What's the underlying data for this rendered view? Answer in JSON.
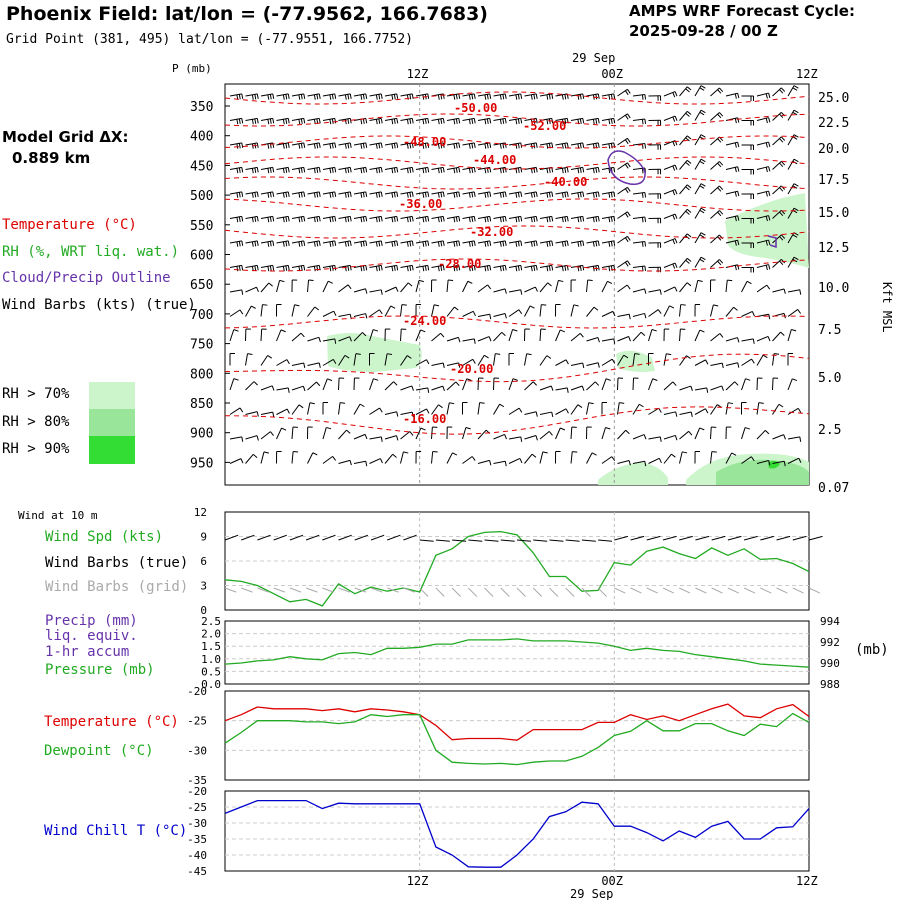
{
  "header": {
    "title": "Phoenix Field:  lat/lon = (-77.9562, 166.7683)",
    "grid_point": "Grid Point (381, 495) lat/lon = (-77.9551, 166.7752)",
    "cycle_line1": "AMPS WRF Forecast Cycle:",
    "cycle_line2": "2025-09-28 / 00  Z"
  },
  "model_grid": {
    "label": "Model Grid ΔX:",
    "value": "0.889 km"
  },
  "legend": {
    "temperature": "Temperature (°C)",
    "rh": "RH (%, WRT liq. wat.)",
    "cloud": "Cloud/Precip Outline",
    "wind": "Wind Barbs (kts) (true)",
    "rh70": "RH > 70%",
    "rh80": "RH > 80%",
    "rh90": "RH > 90%"
  },
  "colors": {
    "temp": "#dd0000",
    "rh": "#22aa22",
    "cloud": "#6633aa",
    "grid_barb": "#aaaaaa",
    "chill": "#0000cc",
    "rh70": "#ccf5cc",
    "rh80": "#99e599",
    "rh90": "#33dd33"
  },
  "time_axis": {
    "date_label": "29 Sep",
    "ticks": [
      "12Z",
      "00Z",
      "12Z"
    ],
    "bottom_ticks": [
      "12Z",
      "00Z",
      "12Z"
    ],
    "bottom_date": "29 Sep"
  },
  "xsec": {
    "p_label": "P (mb)",
    "right_label": "Kft MSL",
    "pressure_levels": [
      "350",
      "400",
      "450",
      "500",
      "550",
      "600",
      "650",
      "700",
      "750",
      "800",
      "850",
      "900",
      "950"
    ],
    "height_labels": [
      "25.0",
      "22.5",
      "20.0",
      "17.5",
      "15.0",
      "12.5",
      "10.0",
      "7.5",
      "5.0",
      "2.5",
      "0.07"
    ],
    "temp_labels": [
      "-50.00",
      "-52.00",
      "-48.00",
      "-44.00",
      "-40.00",
      "-36.00",
      "-32.00",
      "-28.00",
      "-24.00",
      "-20.00",
      "-16.00"
    ]
  },
  "surface": {
    "label": "Wind at 10 m",
    "wind_spd_label": "Wind Spd (kts)",
    "barbs_true_label": "Wind Barbs (true)",
    "barbs_grid_label": "Wind Barbs (grid)",
    "y_ticks": [
      "12",
      "9",
      "6",
      "3",
      "0"
    ]
  },
  "precip": {
    "label1": "Precip (mm)",
    "label2": "liq. equiv.",
    "label3": "1-hr accum",
    "label4": "Pressure (mb)",
    "left_ticks": [
      "2.5",
      "2.0",
      "1.5",
      "1.0",
      "0.5",
      "0.0"
    ],
    "right_ticks": [
      "994",
      "992",
      "990",
      "988"
    ],
    "unit": "(mb)"
  },
  "temps": {
    "temp_label": "Temperature (°C)",
    "dew_label": "Dewpoint (°C)",
    "y_ticks": [
      "-20",
      "-25",
      "-30",
      "-35"
    ]
  },
  "chill": {
    "label": "Wind Chill T (°C)",
    "y_ticks": [
      "-20",
      "-25",
      "-30",
      "-35",
      "-40",
      "-45"
    ]
  },
  "chart_data": [
    {
      "type": "line",
      "title": "Wind Spd (kts)",
      "x_hours": [
        -12,
        -11,
        -10,
        -9,
        -8,
        -7,
        -6,
        -5,
        -4,
        -3,
        -2,
        -1,
        0,
        1,
        2,
        3,
        4,
        5,
        6,
        7,
        8,
        9,
        10,
        11,
        12,
        13,
        14,
        15,
        16,
        17,
        18,
        19,
        20,
        21,
        22,
        23,
        24
      ],
      "series": [
        {
          "name": "Wind Spd",
          "values": [
            3.7,
            3.5,
            3.0,
            2.0,
            1.0,
            1.3,
            0.5,
            3.2,
            2.0,
            2.8,
            2.3,
            2.7,
            2.2,
            6.7,
            7.5,
            9.0,
            9.5,
            9.6,
            9.2,
            7.0,
            4.1,
            4.1,
            2.3,
            2.4,
            5.8,
            5.5,
            7.2,
            7.7,
            6.9,
            6.3,
            7.6,
            6.7,
            7.5,
            6.2,
            6.3,
            5.7,
            4.7
          ]
        }
      ],
      "ylim": [
        0,
        12
      ]
    },
    {
      "type": "line",
      "title": "Pressure (mb)",
      "x_hours": [
        -12,
        -11,
        -10,
        -9,
        -8,
        -7,
        -6,
        -5,
        -4,
        -3,
        -2,
        -1,
        0,
        1,
        2,
        3,
        4,
        5,
        6,
        7,
        8,
        9,
        10,
        11,
        12,
        13,
        14,
        15,
        16,
        17,
        18,
        19,
        20,
        21,
        22,
        23,
        24
      ],
      "series": [
        {
          "name": "Pressure",
          "values": [
            989.9,
            990.0,
            990.2,
            990.3,
            990.6,
            990.4,
            990.3,
            990.9,
            991.0,
            990.8,
            991.4,
            991.4,
            991.5,
            991.8,
            991.8,
            992.2,
            992.2,
            992.2,
            992.3,
            992.1,
            992.1,
            992.1,
            992.0,
            991.9,
            991.6,
            991.2,
            991.4,
            991.2,
            991.1,
            990.8,
            990.6,
            990.4,
            990.2,
            989.9,
            989.8,
            989.7,
            989.6
          ]
        }
      ],
      "ylim": [
        988,
        994
      ]
    },
    {
      "type": "line",
      "title": "Temperature / Dewpoint (°C)",
      "x_hours": [
        -12,
        -11,
        -10,
        -9,
        -8,
        -7,
        -6,
        -5,
        -4,
        -3,
        -2,
        -1,
        0,
        1,
        2,
        3,
        4,
        5,
        6,
        7,
        8,
        9,
        10,
        11,
        12,
        13,
        14,
        15,
        16,
        17,
        18,
        19,
        20,
        21,
        22,
        23,
        24
      ],
      "series": [
        {
          "name": "Temperature",
          "values": [
            -25.0,
            -24.0,
            -22.7,
            -23.0,
            -23.0,
            -23.0,
            -23.3,
            -23.0,
            -23.5,
            -23.0,
            -23.2,
            -23.5,
            -24.0,
            -25.8,
            -28.2,
            -28.0,
            -28.0,
            -28.0,
            -28.3,
            -26.5,
            -26.5,
            -26.5,
            -26.5,
            -25.3,
            -25.3,
            -24.0,
            -24.8,
            -24.2,
            -25.0,
            -24.0,
            -23.0,
            -22.2,
            -24.2,
            -24.5,
            -23.0,
            -22.3,
            -24.3
          ]
        },
        {
          "name": "Dewpoint",
          "values": [
            -28.8,
            -27.0,
            -25.0,
            -25.0,
            -25.0,
            -25.2,
            -25.2,
            -25.5,
            -25.2,
            -24.0,
            -24.3,
            -24.0,
            -24.0,
            -30.0,
            -32.0,
            -32.2,
            -32.3,
            -32.2,
            -32.4,
            -32.0,
            -31.8,
            -31.8,
            -31.0,
            -29.5,
            -27.5,
            -26.8,
            -25.0,
            -26.7,
            -26.7,
            -25.5,
            -25.5,
            -26.7,
            -27.5,
            -25.6,
            -26.0,
            -23.8,
            -25.3
          ]
        }
      ],
      "ylim": [
        -35,
        -20
      ]
    },
    {
      "type": "line",
      "title": "Wind Chill T (°C)",
      "x_hours": [
        -12,
        -11,
        -10,
        -9,
        -8,
        -7,
        -6,
        -5,
        -4,
        -3,
        -2,
        -1,
        0,
        1,
        2,
        3,
        4,
        5,
        6,
        7,
        8,
        9,
        10,
        11,
        12,
        13,
        14,
        15,
        16,
        17,
        18,
        19,
        20,
        21,
        22,
        23,
        24
      ],
      "series": [
        {
          "name": "Wind Chill",
          "values": [
            -27.0,
            -25.0,
            -23.0,
            -23.0,
            -23.0,
            -23.0,
            -25.5,
            -23.8,
            -24.0,
            -24.0,
            -24.0,
            -24.0,
            -24.0,
            -37.5,
            -40.0,
            -43.7,
            -43.8,
            -43.8,
            -40.0,
            -35.0,
            -28.0,
            -26.5,
            -23.5,
            -24.0,
            -31.0,
            -31.0,
            -33.0,
            -35.6,
            -32.5,
            -34.5,
            -31.0,
            -29.5,
            -35.0,
            -35.0,
            -31.5,
            -31.2,
            -25.5
          ]
        }
      ],
      "ylim": [
        -45,
        -20
      ]
    }
  ]
}
